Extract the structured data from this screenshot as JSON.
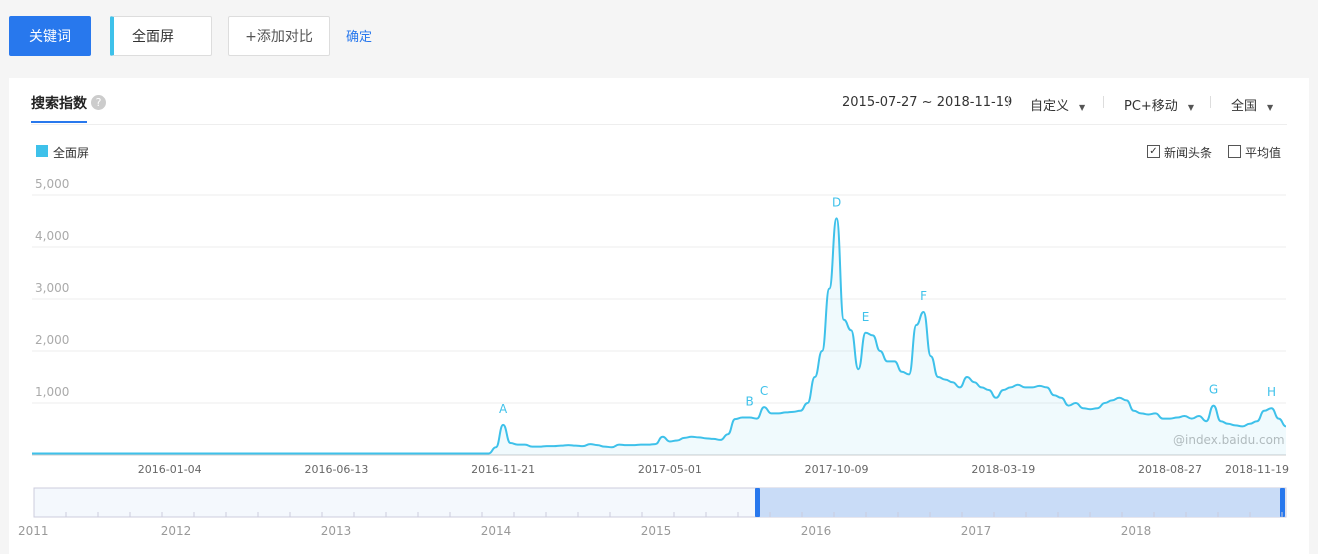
{
  "toolbar": {
    "keyword_button": "关键词",
    "keyword": "全面屏",
    "add_compare": "+添加对比",
    "confirm": "确定"
  },
  "panel": {
    "tab": "搜索指数",
    "date_range": "2015-07-27 ~ 2018-11-19",
    "period": "自定义",
    "device": "PC+移动",
    "region": "全国",
    "options": [
      "新闻头条",
      "平均值"
    ],
    "watermark": "@index.baidu.com"
  },
  "chart_data": {
    "type": "line",
    "area": true,
    "grid": true,
    "categories": [
      null,
      null,
      null,
      null,
      null,
      null,
      null,
      null,
      null,
      null,
      null,
      null,
      null,
      null,
      null,
      null,
      null,
      null,
      null,
      "2016-01-04",
      null,
      null,
      null,
      null,
      null,
      null,
      null,
      null,
      null,
      null,
      null,
      null,
      null,
      null,
      null,
      null,
      null,
      null,
      null,
      null,
      null,
      null,
      "2016-06-13",
      null,
      null,
      null,
      null,
      null,
      null,
      null,
      null,
      null,
      null,
      null,
      null,
      null,
      null,
      null,
      null,
      null,
      null,
      null,
      null,
      null,
      null,
      "2016-11-21",
      null,
      null,
      null,
      null,
      null,
      null,
      null,
      null,
      null,
      null,
      null,
      null,
      null,
      null,
      null,
      null,
      null,
      null,
      null,
      null,
      null,
      null,
      "2017-05-01",
      null,
      null,
      null,
      null,
      null,
      null,
      null,
      null,
      null,
      null,
      null,
      null,
      null,
      null,
      null,
      null,
      null,
      null,
      null,
      null,
      null,
      null,
      "2017-10-09",
      null,
      null,
      null,
      null,
      null,
      null,
      null,
      null,
      null,
      null,
      null,
      null,
      null,
      null,
      null,
      null,
      null,
      null,
      null,
      null,
      null,
      null,
      "2018-03-19",
      null,
      null,
      null,
      null,
      null,
      null,
      null,
      null,
      null,
      null,
      null,
      null,
      null,
      null,
      null,
      null,
      null,
      null,
      null,
      null,
      null,
      null,
      "2018-08-27",
      null,
      null,
      null,
      null,
      null,
      null,
      null,
      null,
      null,
      null,
      null,
      "2018-11-19",
      null,
      null,
      null,
      null
    ],
    "series": [
      {
        "name": "全面屏",
        "color": "#3ec1ea",
        "values": [
          30,
          30,
          30,
          30,
          30,
          30,
          30,
          30,
          30,
          30,
          30,
          30,
          30,
          30,
          30,
          30,
          30,
          30,
          30,
          30,
          30,
          30,
          30,
          30,
          30,
          30,
          30,
          30,
          30,
          30,
          30,
          30,
          30,
          30,
          30,
          30,
          30,
          30,
          30,
          30,
          30,
          30,
          30,
          30,
          30,
          30,
          30,
          30,
          30,
          30,
          30,
          30,
          30,
          30,
          30,
          30,
          30,
          30,
          30,
          30,
          30,
          30,
          30,
          30,
          150,
          580,
          230,
          200,
          200,
          160,
          160,
          170,
          170,
          180,
          190,
          180,
          170,
          210,
          190,
          160,
          150,
          200,
          190,
          190,
          200,
          200,
          210,
          350,
          260,
          280,
          330,
          350,
          340,
          320,
          310,
          290,
          400,
          690,
          720,
          720,
          700,
          920,
          800,
          800,
          820,
          830,
          850,
          1000,
          1500,
          2000,
          3200,
          4550,
          2600,
          2400,
          1650,
          2350,
          2300,
          2000,
          1800,
          1800,
          1600,
          1550,
          2500,
          2750,
          1900,
          1500,
          1450,
          1400,
          1300,
          1500,
          1400,
          1300,
          1250,
          1100,
          1250,
          1300,
          1350,
          1300,
          1300,
          1330,
          1300,
          1150,
          1100,
          950,
          1000,
          900,
          880,
          900,
          1000,
          1050,
          1100,
          1050,
          850,
          800,
          780,
          800,
          700,
          700,
          720,
          750,
          700,
          750,
          650,
          950,
          650,
          600,
          570,
          550,
          600,
          650,
          850,
          900,
          700,
          550
        ],
        "point_labels": [
          null,
          null,
          null,
          null,
          null,
          null,
          null,
          null,
          null,
          null,
          null,
          null,
          null,
          null,
          null,
          null,
          null,
          null,
          null,
          null,
          null,
          null,
          null,
          null,
          null,
          null,
          null,
          null,
          null,
          null,
          null,
          null,
          null,
          null,
          null,
          null,
          null,
          null,
          null,
          null,
          null,
          null,
          null,
          null,
          null,
          null,
          null,
          null,
          null,
          null,
          null,
          null,
          null,
          null,
          null,
          null,
          null,
          null,
          null,
          null,
          null,
          null,
          null,
          null,
          null,
          "A",
          null,
          null,
          null,
          null,
          null,
          null,
          null,
          null,
          null,
          null,
          null,
          null,
          null,
          null,
          null,
          null,
          null,
          null,
          null,
          null,
          null,
          null,
          null,
          null,
          null,
          null,
          null,
          null,
          null,
          null,
          null,
          null,
          null,
          "B",
          null,
          "C",
          null,
          null,
          null,
          null,
          null,
          null,
          null,
          null,
          null,
          "D",
          null,
          null,
          null,
          "E",
          null,
          null,
          null,
          null,
          null,
          null,
          null,
          "F",
          null,
          null,
          null,
          null,
          null,
          null,
          null,
          null,
          null,
          null,
          null,
          null,
          null,
          null,
          null,
          null,
          null,
          null,
          null,
          null,
          null,
          null,
          null,
          null,
          null,
          null,
          null,
          null,
          null,
          null,
          null,
          null,
          null,
          null,
          null,
          null,
          null,
          null,
          null,
          "G",
          null,
          null,
          null,
          null,
          null,
          null,
          null,
          "H",
          null,
          null
        ]
      }
    ],
    "ylim": [
      0,
      5000
    ],
    "yticks": [
      0,
      {
        "value": 1000,
        "label": "1,000"
      },
      {
        "value": 2000,
        "label": "2,000"
      },
      {
        "value": 3000,
        "label": "3,000"
      },
      {
        "value": 4000,
        "label": "4,000"
      },
      {
        "value": 5000,
        "label": "5,000"
      }
    ]
  },
  "navigator": {
    "years": [
      "2011",
      "2012",
      "2013",
      "2014",
      "2015",
      "2016",
      "2017",
      "2018"
    ]
  }
}
